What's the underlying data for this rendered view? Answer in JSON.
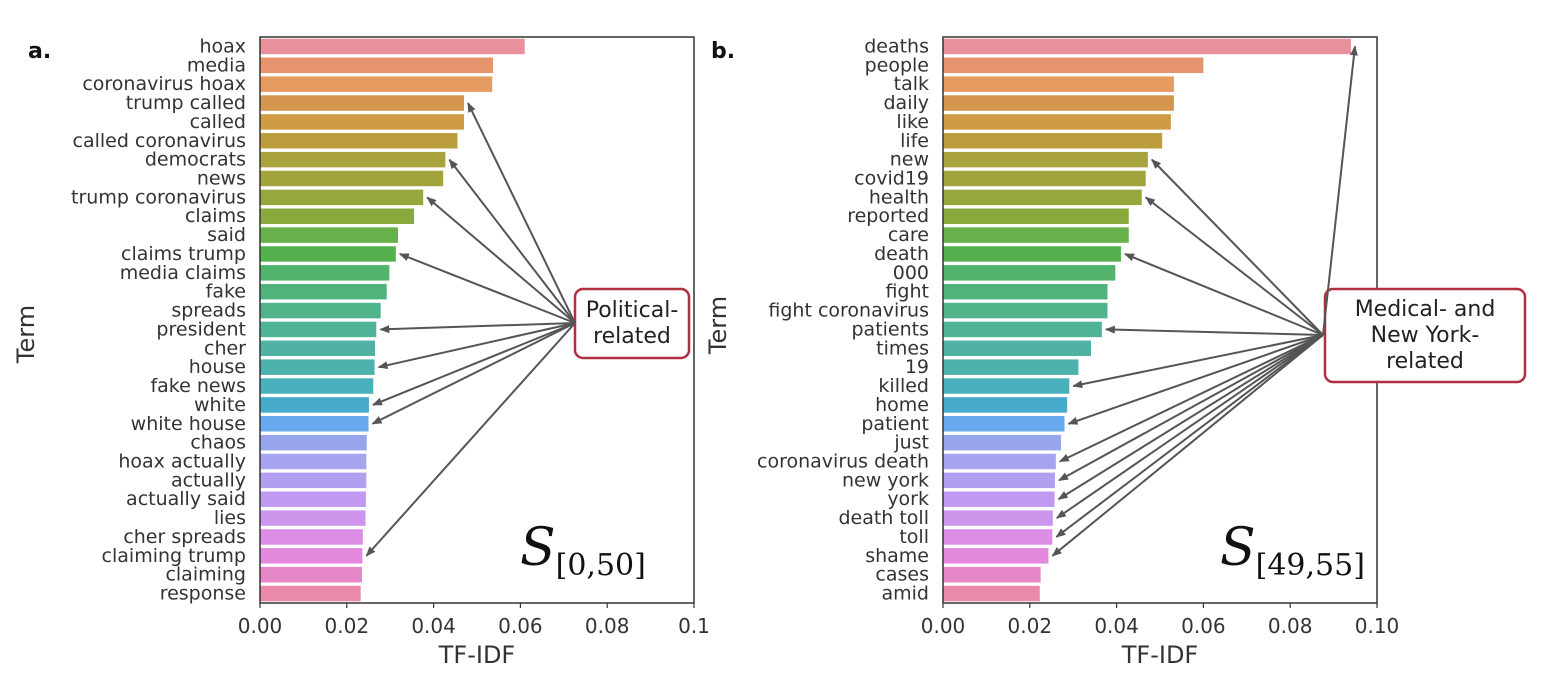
{
  "chart_data": [
    {
      "type": "bar",
      "orientation": "horizontal",
      "panel_label": "a.",
      "xlabel": "TF-IDF",
      "ylabel": "Term",
      "xlim": [
        0,
        0.1
      ],
      "xticks": [
        "0.00",
        "0.02",
        "0.04",
        "0.06",
        "0.08",
        "0.1"
      ],
      "grid": false,
      "annotation": {
        "symbol": "S",
        "subscript": "[0,50]"
      },
      "callout": {
        "lines": [
          "Political-",
          "related"
        ],
        "color": "#b03040",
        "targets": [
          3,
          6,
          8,
          11,
          15,
          17,
          19,
          20,
          27
        ]
      },
      "categories": [
        "hoax",
        "media",
        "coronavirus hoax",
        "trump called",
        "called",
        "called coronavirus",
        "democrats",
        "news",
        "trump coronavirus",
        "claims",
        "said",
        "claims trump",
        "media claims",
        "fake",
        "spreads",
        "president",
        "cher",
        "house",
        "fake news",
        "white",
        "white house",
        "chaos",
        "hoax actually",
        "actually",
        "actually said",
        "lies",
        "cher spreads",
        "claiming trump",
        "claiming",
        "response"
      ],
      "values": [
        0.061,
        0.0537,
        0.0535,
        0.047,
        0.047,
        0.0455,
        0.0427,
        0.0422,
        0.0376,
        0.0355,
        0.0318,
        0.0313,
        0.0298,
        0.0292,
        0.0278,
        0.0268,
        0.0265,
        0.0264,
        0.0261,
        0.0251,
        0.025,
        0.0246,
        0.0245,
        0.0245,
        0.0244,
        0.0243,
        0.0237,
        0.0236,
        0.0235,
        0.0232
      ],
      "colors": [
        "#e8909c",
        "#e5946e",
        "#e59a60",
        "#d4964e",
        "#cf9a44",
        "#bc9d3e",
        "#a9a33d",
        "#a2a33c",
        "#95a73d",
        "#88aa3d",
        "#68b04a",
        "#55b14e",
        "#52b36c",
        "#50b37c",
        "#4fb48a",
        "#4fb397",
        "#4fb2a3",
        "#4cb0ad",
        "#4ab0bc",
        "#47aacb",
        "#66aaec",
        "#97a5ec",
        "#a7a3ee",
        "#b39ff0",
        "#c09af0",
        "#ce95ec",
        "#dc8de4",
        "#e48ade",
        "#e587c6",
        "#e88aa8"
      ]
    },
    {
      "type": "bar",
      "orientation": "horizontal",
      "panel_label": "b.",
      "xlabel": "TF-IDF",
      "ylabel": "Term",
      "xlim": [
        0,
        0.1
      ],
      "xticks": [
        "0.00",
        "0.02",
        "0.04",
        "0.06",
        "0.08",
        "0.10"
      ],
      "grid": false,
      "annotation": {
        "symbol": "S",
        "subscript": "[49,55]"
      },
      "callout": {
        "lines": [
          "Medical- and",
          "New York-",
          "related"
        ],
        "color": "#b03040",
        "targets": [
          0,
          6,
          8,
          11,
          15,
          18,
          20,
          22,
          23,
          24,
          25,
          26,
          27
        ]
      },
      "categories": [
        "deaths",
        "people",
        "talk",
        "daily",
        "like",
        "life",
        "new",
        "covid19",
        "health",
        "reported",
        "care",
        "death",
        "000",
        "fight",
        "fight coronavirus",
        "patients",
        "times",
        "19",
        "killed",
        "home",
        "patient",
        "just",
        "coronavirus death",
        "new york",
        "york",
        "death toll",
        "toll",
        "shame",
        "cases",
        "amid"
      ],
      "values": [
        0.094,
        0.06,
        0.0532,
        0.0532,
        0.0525,
        0.0505,
        0.0472,
        0.0467,
        0.0458,
        0.0428,
        0.0428,
        0.041,
        0.0397,
        0.0379,
        0.0379,
        0.0366,
        0.0341,
        0.0312,
        0.0291,
        0.0286,
        0.028,
        0.0272,
        0.026,
        0.0258,
        0.0257,
        0.0253,
        0.0252,
        0.0243,
        0.0225,
        0.0223
      ],
      "colors": [
        "#e8909c",
        "#e5946e",
        "#e59a60",
        "#d4964e",
        "#cf9a44",
        "#bc9d3e",
        "#a9a33d",
        "#a2a33c",
        "#95a73d",
        "#88aa3d",
        "#68b04a",
        "#55b14e",
        "#52b36c",
        "#50b37c",
        "#4fb48a",
        "#4fb397",
        "#4fb2a3",
        "#4cb0ad",
        "#4ab0bc",
        "#47aacb",
        "#66aaec",
        "#97a5ec",
        "#a7a3ee",
        "#b39ff0",
        "#c09af0",
        "#ce95ec",
        "#dc8de4",
        "#e48ade",
        "#e587c6",
        "#e88aa8"
      ]
    }
  ]
}
